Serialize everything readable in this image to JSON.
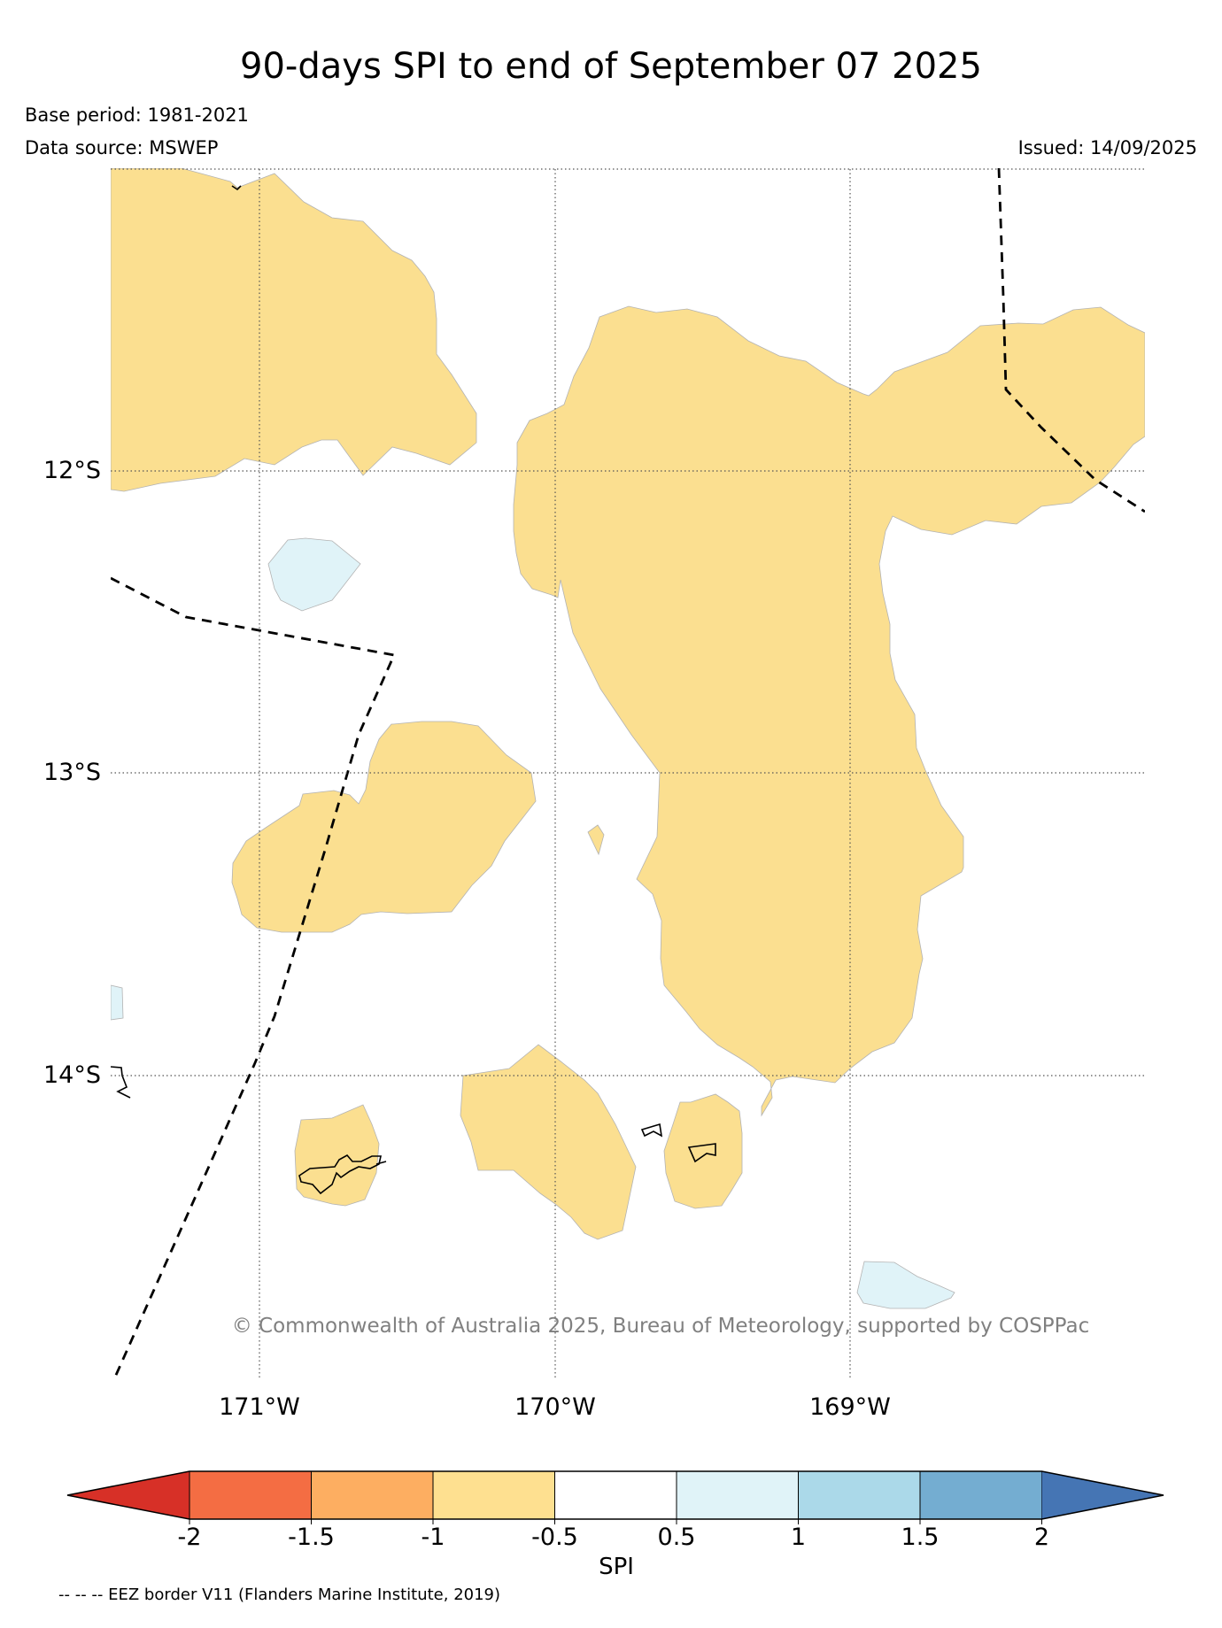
{
  "title": "90-days SPI to end of September 07 2025",
  "base_period": "Base period: 1981-2021",
  "data_source": "Data source: MSWEP",
  "issued": "Issued: 14/09/2025",
  "copyright": "© Commonwealth of Australia 2025, Bureau of Meteorology, supported by COSPPac",
  "map": {
    "lat_labels": [
      "12°S",
      "13°S",
      "14°S"
    ],
    "lon_labels": [
      "171°W",
      "170°W",
      "169°W"
    ]
  },
  "colorbar": {
    "label": "SPI",
    "ticks": [
      "-2",
      "-1.5",
      "-1",
      "-0.5",
      "0.5",
      "1",
      "1.5",
      "2"
    ],
    "colors": [
      "#d73027",
      "#f46d43",
      "#fdae61",
      "#fee090",
      "#ffffff",
      "#e0f3f8",
      "#abd9e9",
      "#74add1",
      "#4575b4"
    ]
  },
  "legend": {
    "eez": "-- -- -- EEZ border V11 (Flanders Marine Institute, 2019)"
  }
}
